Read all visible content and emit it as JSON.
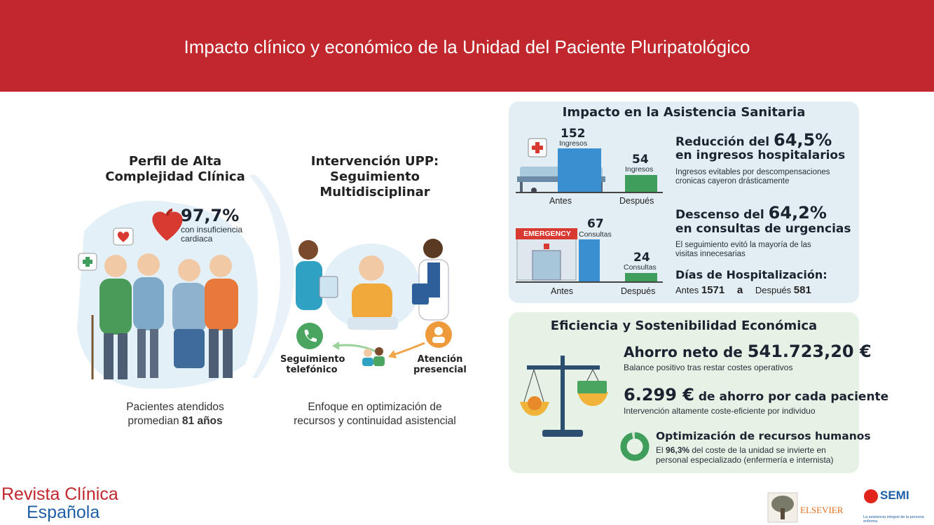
{
  "header": {
    "title": "Impacto clínico y económico de la Unidad del Paciente Pluripatológico"
  },
  "profile": {
    "title_line1": "Perfil de Alta",
    "title_line2": "Complejidad Clínica",
    "pct": "97,7%",
    "pct_label_line1": "con insuficiencia",
    "pct_label_line2": "cardiaca",
    "caption_line1": "Pacientes atendidos",
    "caption_line2_prefix": "promedian ",
    "caption_line2_bold": "81 años"
  },
  "intervention": {
    "title_line1": "Intervención UPP:",
    "title_line2": "Seguimiento Multidisciplinar",
    "phone_line1": "Seguimiento",
    "phone_line2": "telefónico",
    "visit_line1": "Atención",
    "visit_line2": "presencial",
    "caption_line1": "Enfoque en optimización de",
    "caption_line2": "recursos y continuidad asistencial"
  },
  "healthcare": {
    "title": "Impacto en la Asistencia Sanitaria",
    "admissions": {
      "before_value": "152",
      "before_unit": "Ingresos",
      "after_value": "54",
      "after_unit": "Ingresos",
      "before_label": "Antes",
      "after_label": "Después",
      "headline_prefix": "Reducción del ",
      "headline_pct": "64,5%",
      "headline_line2": "en ingresos hospitalarios",
      "desc_line1": "Ingresos evitables por descompensaciones",
      "desc_line2": "cronicas cayeron drásticamente"
    },
    "emergency": {
      "sign": "EMERGENCY",
      "before_value": "67",
      "before_unit": "Consultas",
      "after_value": "24",
      "after_unit": "Consultas",
      "before_label": "Antes",
      "after_label": "Después",
      "headline_prefix": "Descenso del ",
      "headline_pct": "64,2%",
      "headline_line2": "en consultas de urgencias",
      "desc_line1": "El seguimiento evitó la mayoría de las",
      "desc_line2": "visitas innecesarias"
    },
    "stay": {
      "title": "Días de Hospitalización:",
      "before_label": "Antes",
      "before_value": "1571",
      "arrow": "a",
      "after_label": "Después",
      "after_value": "581"
    }
  },
  "economy": {
    "title": "Eficiencia y Sostenibilidad Económica",
    "savings_prefix": "Ahorro neto de ",
    "savings_value": "541.723,20 €",
    "savings_desc": "Balance positivo tras restar costes operativos",
    "per_patient_value": "6.299 €",
    "per_patient_text": " de ahorro por cada paciente",
    "per_patient_desc": "Intervención altamente coste-eficiente por individuo",
    "hr_title": "Optimización de recursos humanos",
    "hr_desc_prefix": "El ",
    "hr_desc_pct": "96,3%",
    "hr_desc_suffix": " del coste de la unidad se invierte en",
    "hr_desc_line2": "personal especializado (enfermería e internista)",
    "hr_fraction": 0.963
  },
  "footer": {
    "journal_line1": "Revista Clínica",
    "journal_line2": "Española",
    "publisher": "ELSEVIER",
    "society": "SEMI",
    "society_tagline": "La asistencia integral de la persona enferma"
  },
  "colors": {
    "header": "#c0282e",
    "panel_blue": "#e2eef3",
    "panel_green": "#e7f2e6",
    "bar_green": "#3f9e5c",
    "bar_blue": "#3a8fd0",
    "journal_red": "#c0282e",
    "journal_blue": "#1f5fa8"
  }
}
